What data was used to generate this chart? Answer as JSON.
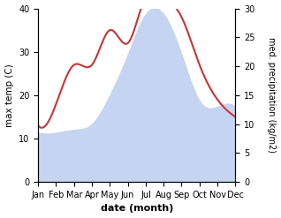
{
  "months": [
    "Jan",
    "Feb",
    "Mar",
    "Apr",
    "May",
    "Jun",
    "Jul",
    "Aug",
    "Sep",
    "Oct",
    "Nov",
    "Dec"
  ],
  "temp_values": [
    13,
    18,
    27,
    27,
    35,
    32,
    43,
    43,
    38,
    27,
    19,
    15
  ],
  "precip_values": [
    8.5,
    8.5,
    9,
    10,
    15,
    22,
    29,
    29,
    22,
    14,
    13,
    13
  ],
  "temp_color": "#cc3333",
  "precip_fill_color": "#c5d4f0",
  "ylim_left": [
    0,
    40
  ],
  "ylim_right": [
    0,
    30
  ],
  "yticks_left": [
    0,
    10,
    20,
    30,
    40
  ],
  "yticks_right": [
    0,
    5,
    10,
    15,
    20,
    25,
    30
  ],
  "xlabel": "date (month)",
  "ylabel_left": "max temp (C)",
  "ylabel_right": "med. precipitation (kg/m2)"
}
